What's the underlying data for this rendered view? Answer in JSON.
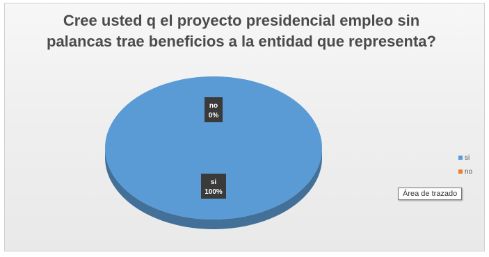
{
  "chart_data": {
    "type": "pie",
    "title": "Cree usted q el proyecto presidencial empleo sin palancas trae beneficios a la entidad que representa?",
    "title_lines": [
      "Cree usted q el proyecto presidencial empleo sin",
      "palancas trae beneficios a la entidad que representa?"
    ],
    "categories": [
      "si",
      "no"
    ],
    "values": [
      100,
      0
    ],
    "data_labels": [
      {
        "category": "si",
        "percent": "100%"
      },
      {
        "category": "no",
        "percent": "0%"
      }
    ],
    "colors": {
      "si": "#5b9bd5",
      "no": "#ed7d31"
    },
    "legend_position": "right"
  },
  "tooltip": {
    "text": "Área de trazado"
  }
}
